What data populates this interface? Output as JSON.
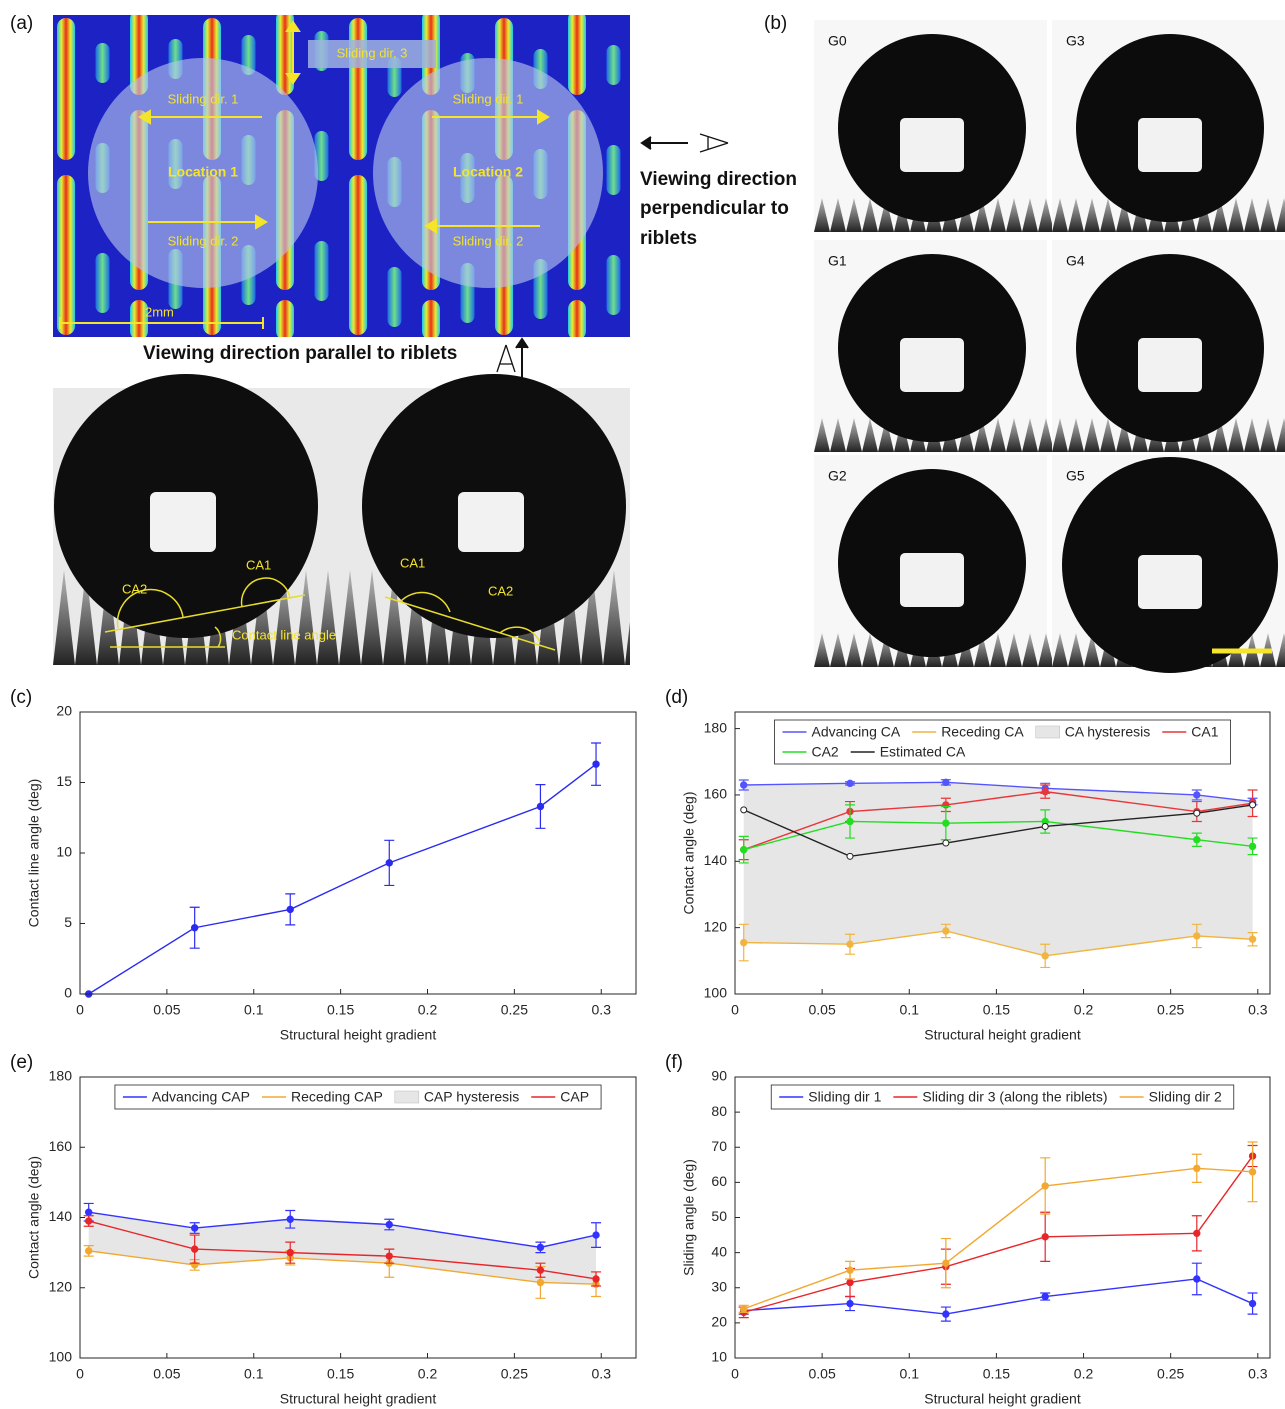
{
  "panel_a": {
    "label": "(a)",
    "sliding_dir_3": "Sliding dir. 3",
    "loc1_dir1": "Sliding dir. 1",
    "loc1_name": "Location 1",
    "loc1_dir2": "Sliding dir. 2",
    "loc2_dir1": "Sliding dir. 1",
    "loc2_name": "Location 2",
    "loc2_dir2": "Sliding dir. 2",
    "scale": "2mm",
    "view_perp": [
      "Viewing direction",
      "perpendicular to",
      "riblets"
    ],
    "view_par": "Viewing direction parallel to riblets",
    "left_ca2": "CA2",
    "left_ca1": "CA1",
    "contact_line": "Contact line angle",
    "right_ca1": "CA1",
    "right_ca2": "CA2"
  },
  "panel_b": {
    "label": "(b)",
    "droplets": [
      "G0",
      "G3",
      "G1",
      "G4",
      "G2",
      "G5"
    ]
  },
  "chart_data": [
    {
      "type": "line",
      "panel_label": "(c)",
      "xlabel": "Structural height gradient",
      "ylabel": "Contact line angle (deg)",
      "xlim": [
        0,
        0.32
      ],
      "xticks": [
        0,
        0.05,
        0.1,
        0.15,
        0.2,
        0.25,
        0.3
      ],
      "ylim": [
        0,
        20
      ],
      "yticks": [
        0,
        5,
        10,
        15,
        20
      ],
      "x": [
        0.005,
        0.066,
        0.121,
        0.178,
        0.265,
        0.297
      ],
      "series": [
        {
          "color": "#2b2bf0",
          "values": [
            0,
            4.7,
            6.0,
            9.3,
            13.3,
            16.3
          ],
          "errors": [
            0,
            1.45,
            1.1,
            1.6,
            1.55,
            1.5
          ]
        }
      ]
    },
    {
      "type": "line",
      "panel_label": "(d)",
      "xlabel": "Structural height gradient",
      "ylabel": "Contact angle (deg)",
      "xlim": [
        0,
        0.307
      ],
      "xticks": [
        0,
        0.05,
        0.1,
        0.15,
        0.2,
        0.25,
        0.3
      ],
      "ylim": [
        100,
        185
      ],
      "yticks": [
        100,
        120,
        140,
        160,
        180
      ],
      "x": [
        0.005,
        0.066,
        0.121,
        0.178,
        0.265,
        0.297
      ],
      "series": [
        {
          "name": "Advancing CA",
          "color": "#5555ff",
          "values": [
            163,
            163.5,
            163.8,
            162,
            160,
            158
          ],
          "errors": [
            1.5,
            0.5,
            0.8,
            1.5,
            1.5,
            1
          ]
        },
        {
          "name": "Receding CA",
          "color": "#f2b440",
          "values": [
            115.5,
            115,
            119,
            111.5,
            117.5,
            116.5
          ],
          "errors": [
            5.5,
            3,
            2,
            3.5,
            3.5,
            2
          ]
        },
        {
          "name": "CA hysteresis",
          "color": "#e6e6e6",
          "style": "band"
        },
        {
          "name": "CA1",
          "color": "#e8363a",
          "values": [
            143.5,
            155,
            157,
            161,
            155,
            157.5
          ],
          "errors": [
            3,
            3,
            2,
            2,
            3,
            4
          ]
        },
        {
          "name": "CA2",
          "color": "#22dd22",
          "values": [
            143.5,
            152,
            151.5,
            152,
            146.5,
            144.5
          ],
          "errors": [
            4,
            5,
            5,
            3.5,
            2,
            2.5
          ]
        },
        {
          "name": "Estimated CA",
          "color": "#222222",
          "marker": "hollow",
          "values": [
            155.5,
            141.5,
            145.5,
            150.5,
            154.5,
            157
          ]
        }
      ]
    },
    {
      "type": "line",
      "panel_label": "(e)",
      "xlabel": "Structural height gradient",
      "ylabel": "Contact angle (deg)",
      "xlim": [
        0,
        0.32
      ],
      "xticks": [
        0,
        0.05,
        0.1,
        0.15,
        0.2,
        0.25,
        0.3
      ],
      "ylim": [
        100,
        180
      ],
      "yticks": [
        100,
        120,
        140,
        160,
        180
      ],
      "x": [
        0.005,
        0.066,
        0.121,
        0.178,
        0.265,
        0.297
      ],
      "series": [
        {
          "name": "Advancing CAP",
          "color": "#3333ff",
          "values": [
            141.5,
            137,
            139.5,
            138,
            131.5,
            135
          ],
          "errors": [
            2.5,
            1.5,
            2.5,
            1.5,
            1.5,
            3.5
          ]
        },
        {
          "name": "Receding CAP",
          "color": "#f2a830",
          "values": [
            130.5,
            126.5,
            128.5,
            127,
            121.5,
            121
          ],
          "errors": [
            1.5,
            1.5,
            2,
            4,
            4.5,
            3.5
          ]
        },
        {
          "name": "CAP hysteresis",
          "color": "#e6e6e6",
          "style": "band"
        },
        {
          "name": "CAP",
          "color": "#e8262a",
          "values": [
            139,
            131,
            130,
            129,
            125,
            122.5
          ],
          "errors": [
            1.5,
            4,
            3,
            2,
            2,
            2
          ]
        }
      ]
    },
    {
      "type": "line",
      "panel_label": "(f)",
      "xlabel": "Structural height gradient",
      "ylabel": "Sliding angle (deg)",
      "xlim": [
        0,
        0.307
      ],
      "xticks": [
        0,
        0.05,
        0.1,
        0.15,
        0.2,
        0.25,
        0.3
      ],
      "ylim": [
        10,
        90
      ],
      "yticks": [
        10,
        20,
        30,
        40,
        50,
        60,
        70,
        80,
        90
      ],
      "x": [
        0.005,
        0.066,
        0.121,
        0.178,
        0.265,
        0.297
      ],
      "series": [
        {
          "name": "Sliding dir 1",
          "color": "#3333ff",
          "values": [
            23.5,
            25.5,
            22.5,
            27.5,
            32.5,
            25.5
          ],
          "errors": [
            1,
            2,
            2,
            1,
            4.5,
            3
          ]
        },
        {
          "name": "Sliding dir 3 (along the riblets)",
          "color": "#e8262a",
          "values": [
            23,
            31.5,
            36,
            44.5,
            45.5,
            67.5
          ],
          "errors": [
            1.5,
            4,
            5,
            7,
            5,
            3
          ]
        },
        {
          "name": "Sliding dir 2",
          "color": "#f2a830",
          "values": [
            24,
            35,
            37,
            59,
            64,
            63
          ],
          "errors": [
            1,
            2.5,
            7,
            8,
            4,
            8.5
          ]
        }
      ]
    }
  ]
}
